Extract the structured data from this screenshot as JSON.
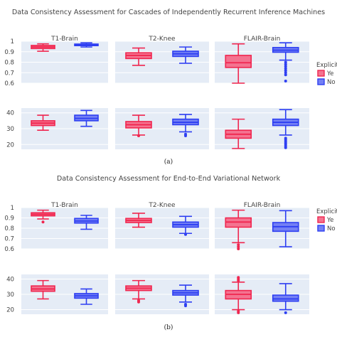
{
  "chart_data": [
    {
      "type": "box",
      "title": "Data Consistency Assessment for Cascades of Independently Recurrent Inference Machines",
      "caption": "(a)",
      "legend": {
        "title": "Explicit",
        "entries": [
          "Ye",
          "No"
        ],
        "placement": "right"
      },
      "panels": [
        "T1-Brain",
        "T2-Knee",
        "FLAIR-Brain"
      ],
      "rows": [
        {
          "ylim": [
            0.6,
            1.0
          ],
          "yticks": [
            {
              "v": 1,
              "label": "1"
            },
            {
              "v": 0.9,
              "label": "0.9"
            },
            {
              "v": 0.8,
              "label": "0.8"
            },
            {
              "v": 0.7,
              "label": "0.7"
            },
            {
              "v": 0.6,
              "label": "0.6"
            }
          ],
          "boxes": [
            [
              {
                "series": "Ye",
                "min": 0.905,
                "q1": 0.93,
                "median": 0.945,
                "q3": 0.96,
                "max": 0.975,
                "outliers": []
              },
              {
                "series": "No",
                "min": 0.945,
                "q1": 0.958,
                "median": 0.965,
                "q3": 0.973,
                "max": 0.985,
                "outliers": []
              }
            ],
            [
              {
                "series": "Ye",
                "min": 0.77,
                "q1": 0.835,
                "median": 0.865,
                "q3": 0.89,
                "max": 0.935,
                "outliers": []
              },
              {
                "series": "No",
                "min": 0.79,
                "q1": 0.855,
                "median": 0.88,
                "q3": 0.905,
                "max": 0.945,
                "outliers": []
              }
            ],
            [
              {
                "series": "Ye",
                "min": 0.6,
                "q1": 0.75,
                "median": 0.795,
                "q3": 0.865,
                "max": 0.975,
                "outliers": []
              },
              {
                "series": "No",
                "min": 0.82,
                "q1": 0.895,
                "median": 0.915,
                "q3": 0.94,
                "max": 0.985,
                "outliers": [
                  0.8,
                  0.78,
                  0.76,
                  0.74,
                  0.72,
                  0.7,
                  0.68,
                  0.62
                ]
              }
            ]
          ]
        },
        {
          "ylim": [
            17,
            43
          ],
          "yticks": [
            {
              "v": 40,
              "label": "40"
            },
            {
              "v": 30,
              "label": "30"
            },
            {
              "v": 20,
              "label": "20"
            }
          ],
          "boxes": [
            [
              {
                "series": "Ye",
                "min": 29,
                "q1": 32,
                "median": 33.5,
                "q3": 35,
                "max": 38.5,
                "outliers": []
              },
              {
                "series": "No",
                "min": 31.5,
                "q1": 35,
                "median": 36.5,
                "q3": 38.5,
                "max": 41.5,
                "outliers": []
              }
            ],
            [
              {
                "series": "Ye",
                "min": 26,
                "q1": 30.5,
                "median": 32.5,
                "q3": 34.5,
                "max": 38.5,
                "outliers": [
                  25.5
                ]
              },
              {
                "series": "No",
                "min": 28,
                "q1": 32.5,
                "median": 34,
                "q3": 36,
                "max": 39,
                "outliers": [
                  26.5,
                  25.5
                ]
              }
            ],
            [
              {
                "series": "Ye",
                "min": 17.5,
                "q1": 24,
                "median": 26.5,
                "q3": 29,
                "max": 36,
                "outliers": []
              },
              {
                "series": "No",
                "min": 26,
                "q1": 32,
                "median": 34,
                "q3": 36,
                "max": 42,
                "outliers": [
                  24,
                  23,
                  22,
                  21,
                  20,
                  19,
                  18
                ]
              }
            ]
          ]
        }
      ]
    },
    {
      "type": "box",
      "title": "Data Consistency Assessment for End-to-End Variational Network",
      "caption": "(b)",
      "legend": {
        "title": "Explicit",
        "entries": [
          "Ye",
          "No"
        ],
        "placement": "right"
      },
      "panels": [
        "T1-Brain",
        "T2-Knee",
        "FLAIR-Brain"
      ],
      "rows": [
        {
          "ylim": [
            0.6,
            1.0
          ],
          "yticks": [
            {
              "v": 1,
              "label": "1"
            },
            {
              "v": 0.9,
              "label": "0.9"
            },
            {
              "v": 0.8,
              "label": "0.8"
            },
            {
              "v": 0.7,
              "label": "0.7"
            },
            {
              "v": 0.6,
              "label": "0.6"
            }
          ],
          "boxes": [
            [
              {
                "series": "Ye",
                "min": 0.89,
                "q1": 0.92,
                "median": 0.935,
                "q3": 0.95,
                "max": 0.975,
                "outliers": [
                  0.86
                ]
              },
              {
                "series": "No",
                "min": 0.79,
                "q1": 0.85,
                "median": 0.87,
                "q3": 0.895,
                "max": 0.925,
                "outliers": []
              }
            ],
            [
              {
                "series": "Ye",
                "min": 0.81,
                "q1": 0.855,
                "median": 0.875,
                "q3": 0.895,
                "max": 0.945,
                "outliers": []
              },
              {
                "series": "No",
                "min": 0.75,
                "q1": 0.81,
                "median": 0.835,
                "q3": 0.86,
                "max": 0.915,
                "outliers": [
                  0.74
                ]
              }
            ],
            [
              {
                "series": "Ye",
                "min": 0.66,
                "q1": 0.81,
                "median": 0.86,
                "q3": 0.9,
                "max": 0.975,
                "outliers": [
                  0.64,
                  0.62,
                  0.6
                ]
              },
              {
                "series": "No",
                "min": 0.62,
                "q1": 0.77,
                "median": 0.815,
                "q3": 0.855,
                "max": 0.97,
                "outliers": []
              }
            ]
          ]
        },
        {
          "ylim": [
            17,
            43
          ],
          "yticks": [
            {
              "v": 40,
              "label": "40"
            },
            {
              "v": 30,
              "label": "30"
            },
            {
              "v": 20,
              "label": "20"
            }
          ],
          "boxes": [
            [
              {
                "series": "Ye",
                "min": 27,
                "q1": 32,
                "median": 33.5,
                "q3": 35.5,
                "max": 39,
                "outliers": []
              },
              {
                "series": "No",
                "min": 23.5,
                "q1": 27.5,
                "median": 29,
                "q3": 30.5,
                "max": 33.5,
                "outliers": []
              }
            ],
            [
              {
                "series": "Ye",
                "min": 27,
                "q1": 32.5,
                "median": 34,
                "q3": 35.5,
                "max": 39,
                "outliers": [
                  26,
                  25
                ]
              },
              {
                "series": "No",
                "min": 25,
                "q1": 29.5,
                "median": 31,
                "q3": 32.5,
                "max": 36,
                "outliers": [
                  23.5,
                  22.5
                ]
              }
            ],
            [
              {
                "series": "Ye",
                "min": 20,
                "q1": 27,
                "median": 30,
                "q3": 32.5,
                "max": 38,
                "outliers": [
                  41,
                  40,
                  39,
                  19,
                  18
                ]
              },
              {
                "series": "No",
                "min": 20,
                "q1": 25.5,
                "median": 27,
                "q3": 29.5,
                "max": 37,
                "outliers": [
                  18
                ]
              }
            ]
          ]
        }
      ]
    }
  ],
  "colors": {
    "Ye": {
      "stroke": "#f0264f",
      "fill": "#f47390"
    },
    "No": {
      "stroke": "#2e3ff2",
      "fill": "#7480f4"
    },
    "plot_bg": "#e5ecf6",
    "grid": "#ffffff"
  }
}
